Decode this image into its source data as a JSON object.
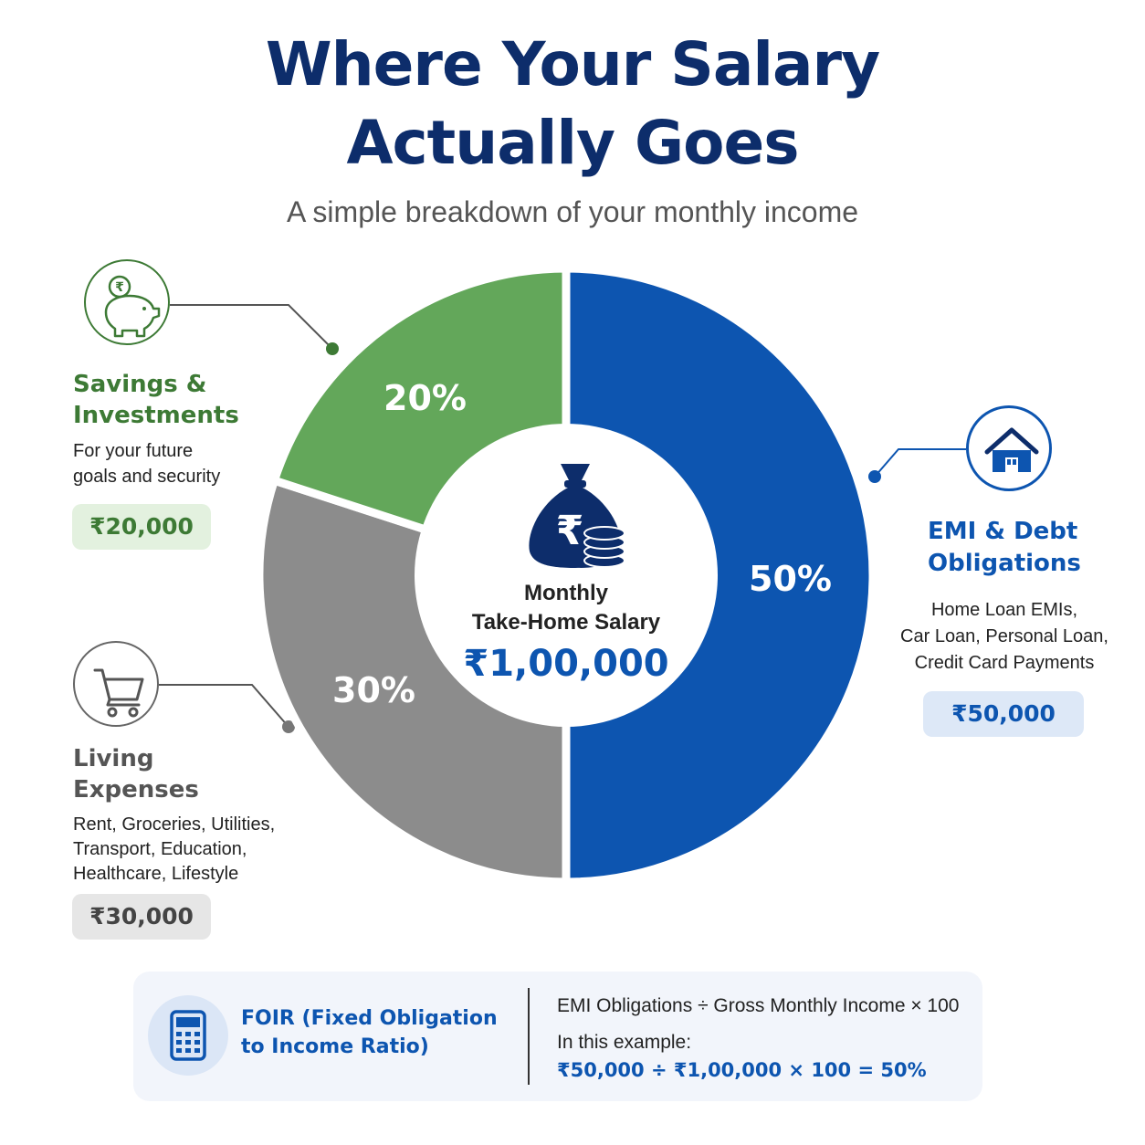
{
  "header": {
    "title_line1": "Where Your Salary",
    "title_line2": "Actually Goes",
    "subtitle": "A simple breakdown of your monthly income"
  },
  "center": {
    "label_line1": "Monthly",
    "label_line2": "Take-Home Salary",
    "amount": "₹1,00,000"
  },
  "categories": [
    {
      "key": "savings",
      "title_line1": "Savings &",
      "title_line2": "Investments",
      "desc_lines": [
        "For your future",
        "goals and security"
      ],
      "amount": "₹20,000",
      "icon": "piggy-bank-rupee-icon"
    },
    {
      "key": "living",
      "title_line1": "Living",
      "title_line2": "Expenses",
      "desc_lines": [
        "Rent, Groceries, Utilities,",
        "Transport, Education,",
        "Healthcare, Lifestyle"
      ],
      "amount": "₹30,000",
      "icon": "shopping-cart-icon"
    },
    {
      "key": "emi",
      "title_line1": "EMI & Debt",
      "title_line2": "Obligations",
      "desc_lines": [
        "Home Loan EMIs,",
        "Car Loan, Personal Loan,",
        "Credit Card Payments"
      ],
      "amount": "₹50,000",
      "icon": "house-icon"
    }
  ],
  "chart_data": {
    "type": "pie",
    "variant": "donut",
    "title": "Where Your Salary Actually Goes",
    "subtitle": "A simple breakdown of your monthly income",
    "total": 100000,
    "slices": [
      {
        "name": "EMI & Debt Obligations",
        "value": 50,
        "label": "50%",
        "amount": 50000,
        "color": "#0d55b0"
      },
      {
        "name": "Living Expenses",
        "value": 30,
        "label": "30%",
        "amount": 30000,
        "color": "#8c8c8c"
      },
      {
        "name": "Savings & Investments",
        "value": 20,
        "label": "20%",
        "amount": 20000,
        "color": "#63a75a"
      }
    ],
    "start": "top, clockwise"
  },
  "foir": {
    "title_line1": "FOIR (Fixed Obligation",
    "title_line2": "to Income Ratio)",
    "formula": "EMI Obligations ÷ Gross Monthly Income × 100",
    "example_label": "In this example:",
    "example_result": "₹50,000 ÷ ₹1,00,000 × 100 = 50%",
    "icon": "calculator-icon"
  },
  "colors": {
    "navy": "#0d2d6b",
    "blue": "#0d55b0",
    "green": "#3d7a35",
    "gray": "#8c8c8c",
    "green_badge_bg": "#e3f1df",
    "blue_badge_bg": "#dde8f7",
    "gray_badge_bg": "#e6e6e6"
  }
}
